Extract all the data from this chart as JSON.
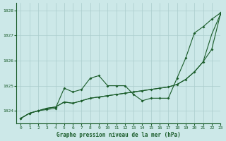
{
  "title": "Graphe pression niveau de la mer (hPa)",
  "bg_color": "#cce8e8",
  "grid_color": "#aacccc",
  "line_color": "#1a5c2a",
  "xlim": [
    -0.5,
    23
  ],
  "ylim": [
    1023.5,
    1028.3
  ],
  "yticks": [
    1024,
    1025,
    1026,
    1027,
    1028
  ],
  "xticks": [
    0,
    1,
    2,
    3,
    4,
    5,
    6,
    7,
    8,
    9,
    10,
    11,
    12,
    13,
    14,
    15,
    16,
    17,
    18,
    19,
    20,
    21,
    22,
    23
  ],
  "series1": [
    1023.7,
    1023.9,
    1024.0,
    1024.05,
    1024.1,
    1024.9,
    1024.75,
    1024.85,
    1025.3,
    1025.4,
    1025.0,
    1025.0,
    1025.0,
    1024.65,
    1024.4,
    1024.5,
    1024.5,
    1024.5,
    1025.3,
    1026.1,
    1027.1,
    1027.35,
    1027.65,
    1027.9
  ],
  "series2": [
    1023.7,
    1023.9,
    1024.0,
    1024.1,
    1024.15,
    1024.35,
    1024.3,
    1024.4,
    1024.5,
    1024.55,
    1024.6,
    1024.65,
    1024.7,
    1024.75,
    1024.8,
    1024.85,
    1024.9,
    1024.95,
    1025.05,
    1025.25,
    1025.55,
    1025.95,
    1026.45,
    1027.85
  ],
  "series3": [
    1023.7,
    1023.9,
    1024.0,
    1024.1,
    1024.15,
    1024.35,
    1024.3,
    1024.4,
    1024.5,
    1024.55,
    1024.6,
    1024.65,
    1024.7,
    1024.75,
    1024.8,
    1024.85,
    1024.9,
    1024.95,
    1025.05,
    1025.25,
    1025.55,
    1025.95,
    1027.05,
    1027.85
  ]
}
